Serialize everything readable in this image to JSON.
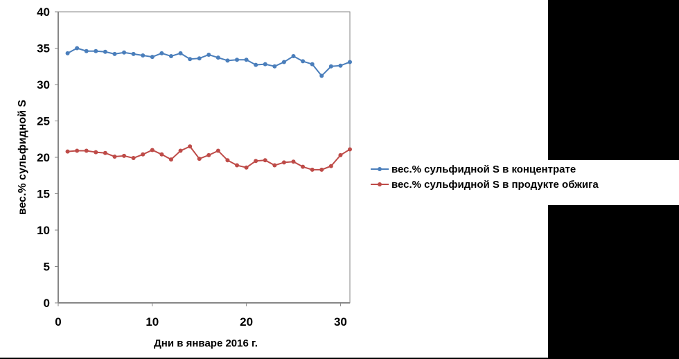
{
  "chart_data": {
    "type": "line",
    "title": "",
    "xlabel": "Дни в январе 2016 г.",
    "ylabel": "вес.% сульфидной S",
    "xlim": [
      0,
      31
    ],
    "ylim": [
      0,
      40
    ],
    "xticks": [
      0,
      10,
      20,
      30
    ],
    "yticks": [
      0,
      5,
      10,
      15,
      20,
      25,
      30,
      35,
      40
    ],
    "grid": false,
    "legend_position": "right",
    "x": [
      1,
      2,
      3,
      4,
      5,
      6,
      7,
      8,
      9,
      10,
      11,
      12,
      13,
      14,
      15,
      16,
      17,
      18,
      19,
      20,
      21,
      22,
      23,
      24,
      25,
      26,
      27,
      28,
      29,
      30,
      31
    ],
    "series": [
      {
        "name": "вес.% сульфидной S в концентрате",
        "color": "#4a7ebb",
        "values": [
          34.3,
          35.0,
          34.6,
          34.6,
          34.5,
          34.2,
          34.4,
          34.2,
          34.0,
          33.8,
          34.3,
          33.9,
          34.3,
          33.5,
          33.6,
          34.1,
          33.7,
          33.3,
          33.4,
          33.4,
          32.7,
          32.8,
          32.5,
          33.1,
          33.9,
          33.2,
          32.8,
          31.2,
          32.5,
          32.6,
          33.1
        ]
      },
      {
        "name": "вес.% сульфидной S в продукте обжига",
        "color": "#be4b48",
        "values": [
          20.8,
          20.9,
          20.9,
          20.7,
          20.6,
          20.1,
          20.2,
          19.9,
          20.4,
          21.0,
          20.4,
          19.7,
          20.9,
          21.5,
          19.8,
          20.3,
          20.9,
          19.6,
          18.9,
          18.6,
          19.5,
          19.6,
          18.9,
          19.3,
          19.4,
          18.7,
          18.3,
          18.3,
          18.8,
          20.3,
          21.1
        ]
      }
    ]
  }
}
